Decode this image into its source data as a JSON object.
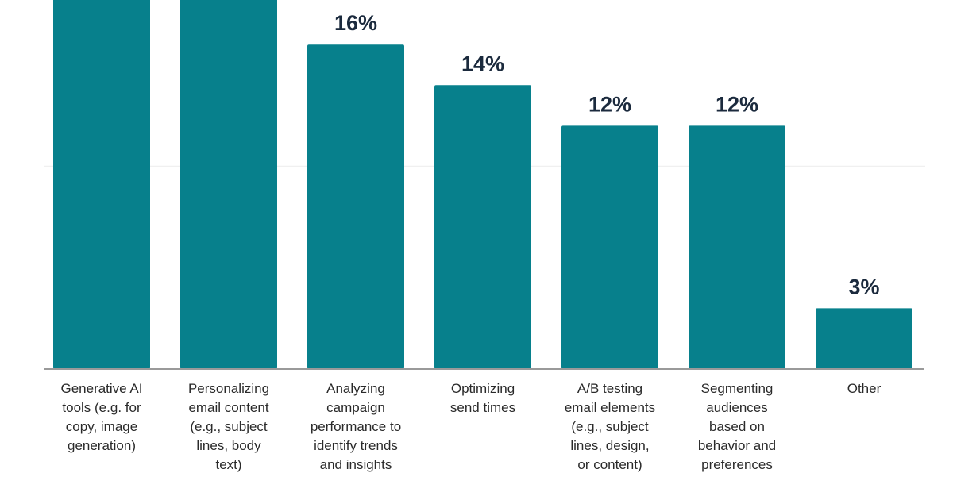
{
  "chart_data": {
    "type": "bar",
    "categories": [
      "Generative AI tools (e.g. for copy, image generation)",
      "Personalizing email content (e.g., subject lines, body text)",
      "Analyzing campaign performance to identify trends and insights",
      "Optimizing send times",
      "A/B testing email elements (e.g., subject lines, design, or content)",
      "Segmenting audiences based on behavior and preferences",
      "Other"
    ],
    "category_lines": [
      [
        "Generative AI",
        "tools (e.g. for",
        "copy, image",
        "generation)"
      ],
      [
        "Personalizing",
        "email content",
        "(e.g., subject",
        "lines, body",
        "text)"
      ],
      [
        "Analyzing",
        "campaign",
        "performance to",
        "identify trends",
        "and insights"
      ],
      [
        "Optimizing",
        "send times"
      ],
      [
        "A/B testing",
        "email elements",
        "(e.g., subject",
        "lines, design,",
        "or content)"
      ],
      [
        "Segmenting",
        "audiences",
        "based on",
        "behavior and",
        "preferences"
      ],
      [
        "Other"
      ]
    ],
    "values": [
      null,
      null,
      16,
      14,
      12,
      12,
      3
    ],
    "data_labels": [
      "",
      "",
      "16%",
      "14%",
      "12%",
      "12%",
      "3%"
    ],
    "ylim": [
      0,
      18.2
    ],
    "gridlines": [
      10
    ],
    "grid": true,
    "bar_color": "#07808c",
    "label_color": "#1b2a3d"
  }
}
